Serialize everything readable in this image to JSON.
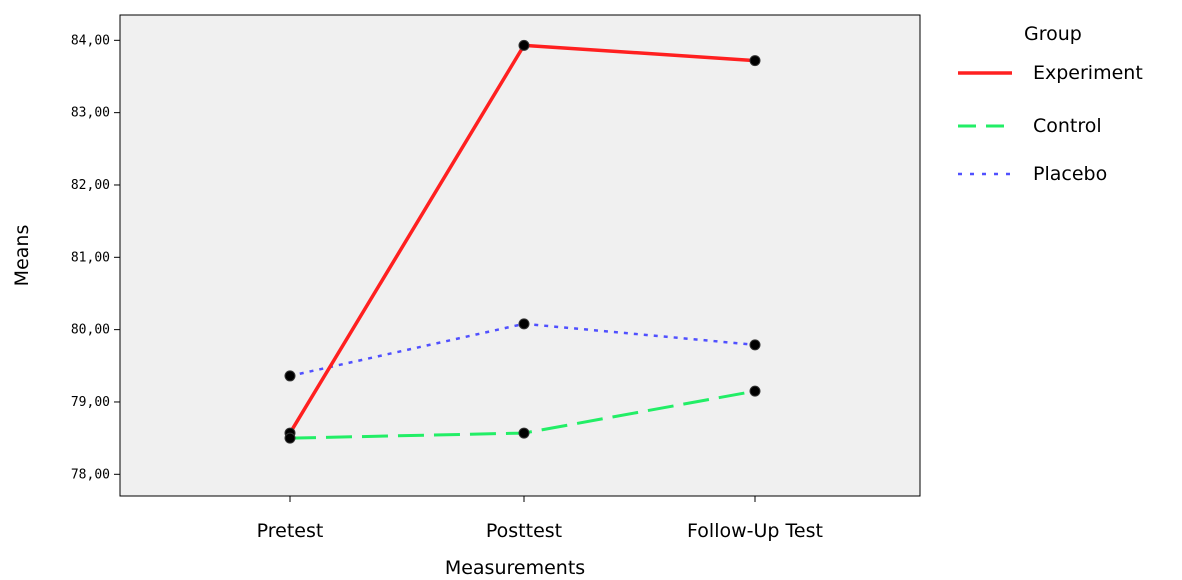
{
  "chart_data": {
    "type": "line",
    "categories": [
      "Pretest",
      "Posttest",
      "Follow-Up Test"
    ],
    "xlabel": "Measurements",
    "ylabel": "Means",
    "ylim": [
      77.7,
      84.35
    ],
    "yticks": [
      78,
      79,
      80,
      81,
      82,
      83,
      84
    ],
    "ytick_labels": [
      "78,00",
      "79,00",
      "80,00",
      "81,00",
      "82,00",
      "83,00",
      "84,00"
    ],
    "grid": false,
    "plot_background": "#f0f0f0",
    "legend": {
      "title": "Group",
      "placement": "right",
      "entries": [
        "Experiment",
        "Control",
        "Placebo"
      ]
    },
    "series": [
      {
        "name": "Experiment",
        "values": [
          78.57,
          83.93,
          83.72
        ],
        "color": "#ff2020",
        "style": "solid"
      },
      {
        "name": "Control",
        "values": [
          78.5,
          78.57,
          79.15
        ],
        "color": "#22ee66",
        "style": "dashed"
      },
      {
        "name": "Placebo",
        "values": [
          79.36,
          80.08,
          79.79
        ],
        "color": "#5050ff",
        "style": "dotted"
      }
    ]
  }
}
